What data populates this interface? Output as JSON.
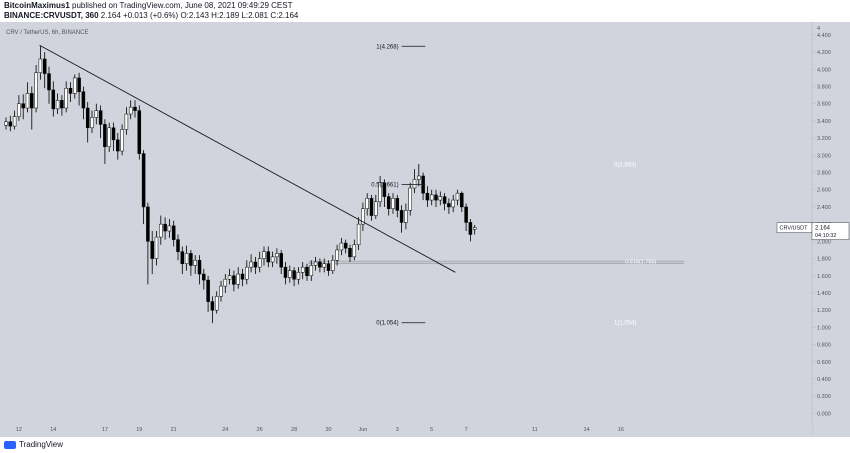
{
  "header": {
    "author": "BitcoinMaximus1",
    "published": "published on TradingView.com, June 08, 2021 09:49:29 CEST",
    "symbol": "BINANCE:CRVUSDT, 360",
    "last": "2.164",
    "change": "+0.013 (+0.6%)",
    "o_label": "O:",
    "o": "2.143",
    "h_label": "H:",
    "h": "2.189",
    "l_label": "L:",
    "l": "2.081",
    "c_label": "C:",
    "c": "2.164"
  },
  "footer": {
    "logo_text": "TradingView"
  },
  "colors": {
    "background": "#d1d4dc",
    "candle_up": "#ffffff",
    "candle_down": "#000000",
    "line": "#131722",
    "white_label": "#ffffff"
  },
  "chart_data": {
    "type": "candlestick",
    "title": "CRV / TetherUS, 6h, BINANCE",
    "ylim": [
      -0.1,
      4.55
    ],
    "y_ticks": [
      0.0,
      0.2,
      0.4,
      0.6,
      0.8,
      1.0,
      1.2,
      1.4,
      1.6,
      1.8,
      2.0,
      2.2,
      2.4,
      2.6,
      2.8,
      3.0,
      3.2,
      3.4,
      3.6,
      3.8,
      4.0,
      4.2,
      4.4
    ],
    "y_tick_labels": [
      "0.000",
      "0.200",
      "0.400",
      "0.600",
      "0.800",
      "1.000",
      "1.200",
      "1.400",
      "1.600",
      "1.800",
      "2.000",
      "2.200",
      "2.400",
      "2.600",
      "2.800",
      "3.000",
      "3.200",
      "3.400",
      "3.600",
      "3.800",
      "4.000",
      "4.200",
      "4.400"
    ],
    "top_label": "4",
    "x_ticks": [
      {
        "label": "12",
        "i": 3
      },
      {
        "label": "14",
        "i": 11
      },
      {
        "label": "17",
        "i": 23
      },
      {
        "label": "19",
        "i": 31
      },
      {
        "label": "21",
        "i": 39
      },
      {
        "label": "24",
        "i": 51
      },
      {
        "label": "26",
        "i": 59
      },
      {
        "label": "28",
        "i": 67
      },
      {
        "label": "30",
        "i": 75
      },
      {
        "label": "Jun",
        "i": 83
      },
      {
        "label": "3",
        "i": 91
      },
      {
        "label": "5",
        "i": 99
      },
      {
        "label": "7",
        "i": 107
      },
      {
        "label": "11",
        "i": 123
      },
      {
        "label": "14",
        "i": 135
      },
      {
        "label": "16",
        "i": 143
      }
    ],
    "candles": [
      [
        3.35,
        3.39,
        3.3,
        3.44
      ],
      [
        3.39,
        3.34,
        3.28,
        3.46
      ],
      [
        3.34,
        3.45,
        3.3,
        3.52
      ],
      [
        3.45,
        3.6,
        3.4,
        3.7
      ],
      [
        3.6,
        3.55,
        3.42,
        3.71
      ],
      [
        3.55,
        3.72,
        3.5,
        3.85
      ],
      [
        3.72,
        3.55,
        3.3,
        3.8
      ],
      [
        3.55,
        3.96,
        3.5,
        4.05
      ],
      [
        3.96,
        4.12,
        3.88,
        4.27
      ],
      [
        4.12,
        3.95,
        3.78,
        4.2
      ],
      [
        3.95,
        3.76,
        3.6,
        4.03
      ],
      [
        3.76,
        3.54,
        3.45,
        3.86
      ],
      [
        3.54,
        3.64,
        3.48,
        3.72
      ],
      [
        3.64,
        3.55,
        3.46,
        3.7
      ],
      [
        3.55,
        3.78,
        3.5,
        3.86
      ],
      [
        3.78,
        3.72,
        3.62,
        3.85
      ],
      [
        3.72,
        3.9,
        3.66,
        3.94
      ],
      [
        3.9,
        3.74,
        3.58,
        3.96
      ],
      [
        3.74,
        3.55,
        3.42,
        3.8
      ],
      [
        3.55,
        3.32,
        3.15,
        3.62
      ],
      [
        3.32,
        3.44,
        3.26,
        3.52
      ],
      [
        3.44,
        3.52,
        3.36,
        3.6
      ],
      [
        3.52,
        3.36,
        3.2,
        3.58
      ],
      [
        3.36,
        3.1,
        2.9,
        3.42
      ],
      [
        3.1,
        3.32,
        3.04,
        3.38
      ],
      [
        3.32,
        3.18,
        3.05,
        3.38
      ],
      [
        3.18,
        3.05,
        2.95,
        3.26
      ],
      [
        3.05,
        3.3,
        3.0,
        3.36
      ],
      [
        3.3,
        3.48,
        3.24,
        3.56
      ],
      [
        3.48,
        3.56,
        3.42,
        3.64
      ],
      [
        3.56,
        3.52,
        3.44,
        3.64
      ],
      [
        3.52,
        3.02,
        2.95,
        3.58
      ],
      [
        3.02,
        2.4,
        2.2,
        3.06
      ],
      [
        2.4,
        2.0,
        1.5,
        2.45
      ],
      [
        2.0,
        1.8,
        1.62,
        2.12
      ],
      [
        1.8,
        2.05,
        1.72,
        2.12
      ],
      [
        2.05,
        2.2,
        1.96,
        2.3
      ],
      [
        2.2,
        2.12,
        2.02,
        2.28
      ],
      [
        2.12,
        2.18,
        2.04,
        2.26
      ],
      [
        2.18,
        2.02,
        1.94,
        2.24
      ],
      [
        2.02,
        1.88,
        1.78,
        2.08
      ],
      [
        1.88,
        1.74,
        1.62,
        1.94
      ],
      [
        1.74,
        1.86,
        1.66,
        1.95
      ],
      [
        1.86,
        1.72,
        1.6,
        1.9
      ],
      [
        1.72,
        1.78,
        1.62,
        1.84
      ],
      [
        1.78,
        1.62,
        1.5,
        1.84
      ],
      [
        1.62,
        1.55,
        1.44,
        1.68
      ],
      [
        1.55,
        1.3,
        1.18,
        1.6
      ],
      [
        1.3,
        1.2,
        1.05,
        1.36
      ],
      [
        1.2,
        1.36,
        1.16,
        1.42
      ],
      [
        1.36,
        1.48,
        1.3,
        1.54
      ],
      [
        1.48,
        1.56,
        1.4,
        1.62
      ],
      [
        1.56,
        1.6,
        1.5,
        1.68
      ],
      [
        1.6,
        1.5,
        1.42,
        1.66
      ],
      [
        1.5,
        1.62,
        1.45,
        1.7
      ],
      [
        1.62,
        1.56,
        1.48,
        1.68
      ],
      [
        1.56,
        1.7,
        1.5,
        1.78
      ],
      [
        1.7,
        1.76,
        1.64,
        1.85
      ],
      [
        1.76,
        1.7,
        1.62,
        1.82
      ],
      [
        1.7,
        1.8,
        1.64,
        1.88
      ],
      [
        1.8,
        1.88,
        1.72,
        1.94
      ],
      [
        1.88,
        1.76,
        1.7,
        1.94
      ],
      [
        1.76,
        1.82,
        1.7,
        1.88
      ],
      [
        1.82,
        1.86,
        1.74,
        1.92
      ],
      [
        1.86,
        1.7,
        1.62,
        1.9
      ],
      [
        1.7,
        1.58,
        1.5,
        1.76
      ],
      [
        1.58,
        1.66,
        1.52,
        1.72
      ],
      [
        1.66,
        1.56,
        1.48,
        1.7
      ],
      [
        1.56,
        1.64,
        1.5,
        1.7
      ],
      [
        1.64,
        1.7,
        1.56,
        1.76
      ],
      [
        1.7,
        1.6,
        1.54,
        1.74
      ],
      [
        1.6,
        1.72,
        1.54,
        1.78
      ],
      [
        1.72,
        1.76,
        1.66,
        1.82
      ],
      [
        1.76,
        1.7,
        1.64,
        1.8
      ],
      [
        1.7,
        1.74,
        1.64,
        1.8
      ],
      [
        1.74,
        1.66,
        1.6,
        1.78
      ],
      [
        1.66,
        1.78,
        1.62,
        1.84
      ],
      [
        1.78,
        1.9,
        1.72,
        1.96
      ],
      [
        1.9,
        1.98,
        1.84,
        2.04
      ],
      [
        1.98,
        1.92,
        1.86,
        2.02
      ],
      [
        1.92,
        1.82,
        1.76,
        1.96
      ],
      [
        1.82,
        1.96,
        1.78,
        2.02
      ],
      [
        1.96,
        2.2,
        1.9,
        2.28
      ],
      [
        2.2,
        2.38,
        2.12,
        2.45
      ],
      [
        2.38,
        2.5,
        2.3,
        2.56
      ],
      [
        2.5,
        2.3,
        2.24,
        2.54
      ],
      [
        2.3,
        2.46,
        2.26,
        2.54
      ],
      [
        2.46,
        2.68,
        2.4,
        2.76
      ],
      [
        2.68,
        2.52,
        2.4,
        2.72
      ],
      [
        2.52,
        2.38,
        2.3,
        2.56
      ],
      [
        2.38,
        2.5,
        2.32,
        2.56
      ],
      [
        2.5,
        2.36,
        2.28,
        2.54
      ],
      [
        2.36,
        2.22,
        2.1,
        2.42
      ],
      [
        2.22,
        2.36,
        2.14,
        2.44
      ],
      [
        2.36,
        2.62,
        2.3,
        2.68
      ],
      [
        2.62,
        2.72,
        2.56,
        2.84
      ],
      [
        2.72,
        2.76,
        2.64,
        2.9
      ],
      [
        2.76,
        2.56,
        2.48,
        2.8
      ],
      [
        2.56,
        2.48,
        2.4,
        2.64
      ],
      [
        2.48,
        2.54,
        2.42,
        2.6
      ],
      [
        2.54,
        2.48,
        2.4,
        2.6
      ],
      [
        2.48,
        2.52,
        2.42,
        2.58
      ],
      [
        2.52,
        2.44,
        2.36,
        2.56
      ],
      [
        2.44,
        2.4,
        2.32,
        2.5
      ],
      [
        2.4,
        2.48,
        2.34,
        2.54
      ],
      [
        2.48,
        2.56,
        2.42,
        2.6
      ],
      [
        2.56,
        2.4,
        2.34,
        2.58
      ],
      [
        2.4,
        2.22,
        2.12,
        2.44
      ],
      [
        2.22,
        2.08,
        2.0,
        2.26
      ],
      [
        2.14,
        2.16,
        2.08,
        2.19
      ]
    ],
    "trendline": {
      "start": {
        "i": 7.8,
        "price": 4.28
      },
      "end": {
        "i": 104.5,
        "price": 1.64
      }
    },
    "horizontal_zone": {
      "i_start": 70.5,
      "i_end": 157.5,
      "price_top": 1.77,
      "price_bottom": 1.74,
      "label": "0.618(1.756)"
    },
    "fib_left": [
      {
        "label": "1(4.268)",
        "price": 4.268,
        "i_start": 92,
        "i_end": 97.5
      },
      {
        "label": "0.5(2.661)",
        "price": 2.661,
        "i_start": 92,
        "i_end": 97.5
      },
      {
        "label": "0(1.054)",
        "price": 1.054,
        "i_start": 92,
        "i_end": 97.5
      }
    ],
    "fib_right": [
      {
        "label": "0(2.893)",
        "price": 2.893,
        "i": 144
      },
      {
        "label": "1(1.054)",
        "price": 1.054,
        "i": 144
      }
    ],
    "price_tag": {
      "symbol": "CRV/USDT",
      "price": "2.164",
      "countdown": "04:10:32"
    }
  }
}
